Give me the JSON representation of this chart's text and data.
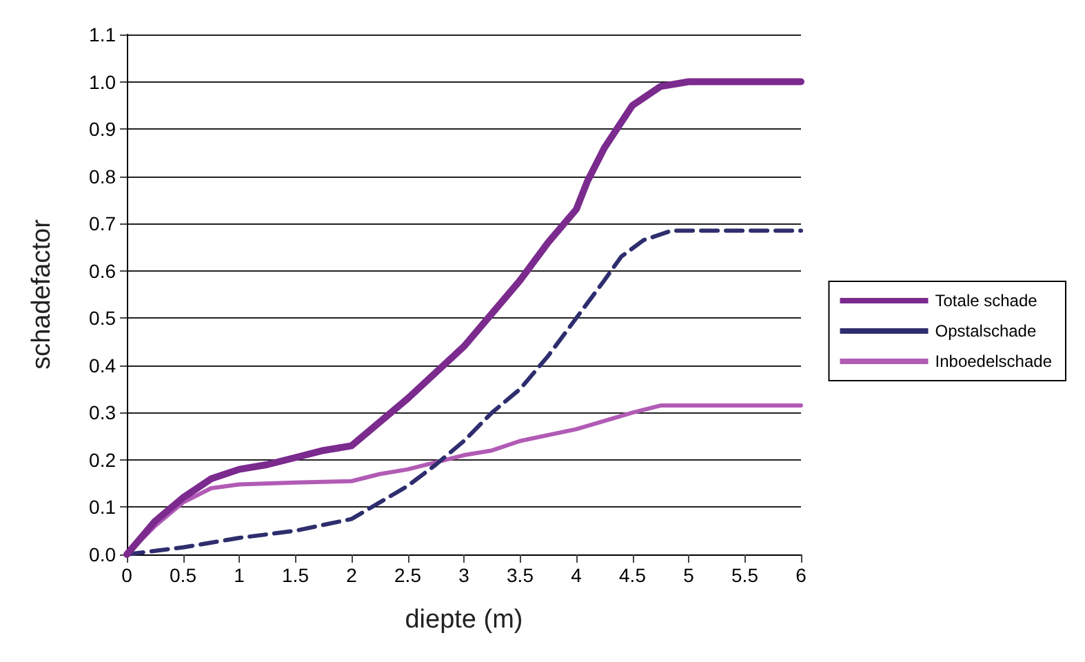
{
  "chart_data": {
    "type": "line",
    "xlabel": "diepte (m)",
    "ylabel": "schadefactor",
    "xlim": [
      0,
      6
    ],
    "xticks": [
      0,
      0.5,
      1,
      1.5,
      2,
      2.5,
      3,
      3.5,
      4,
      4.5,
      5,
      5.5,
      6
    ],
    "ylim": [
      0,
      1.1
    ],
    "yticks": [
      {
        "value": 0,
        "label": "0.0"
      },
      0.1,
      0.2,
      0.3,
      0.4,
      0.5,
      0.6,
      0.7,
      0.8,
      0.9,
      {
        "value": 1,
        "label": "1.0"
      },
      1.1
    ],
    "grid": "y",
    "legend": "right",
    "marker": "none",
    "series": [
      {
        "name": "Totale schade",
        "color": "#7b2a8e",
        "line_style": "solid",
        "x": [
          0,
          0.25,
          0.5,
          0.75,
          1,
          1.25,
          1.5,
          1.75,
          2,
          2.25,
          2.5,
          2.75,
          3,
          3.25,
          3.5,
          3.75,
          4,
          4.1,
          4.25,
          4.5,
          4.75,
          5,
          6
        ],
        "values": [
          0,
          0.07,
          0.12,
          0.16,
          0.18,
          0.19,
          0.205,
          0.22,
          0.23,
          0.28,
          0.33,
          0.385,
          0.44,
          0.51,
          0.58,
          0.66,
          0.73,
          0.79,
          0.86,
          0.95,
          0.99,
          1.0,
          1.0
        ]
      },
      {
        "name": "Opstalschade",
        "color": "#2e2d6e",
        "line_style": "dashed",
        "x": [
          0,
          0.5,
          1,
          1.5,
          2,
          2.25,
          2.5,
          2.75,
          3,
          3.25,
          3.5,
          3.75,
          4,
          4.25,
          4.4,
          4.6,
          4.85,
          6
        ],
        "values": [
          0,
          0.015,
          0.035,
          0.05,
          0.075,
          0.11,
          0.145,
          0.19,
          0.24,
          0.3,
          0.35,
          0.42,
          0.5,
          0.58,
          0.63,
          0.665,
          0.685,
          0.685
        ]
      },
      {
        "name": "Inboedelschade",
        "color": "#b15bb5",
        "line_style": "solid",
        "x": [
          0,
          0.25,
          0.5,
          0.75,
          1,
          1.5,
          2,
          2.25,
          2.5,
          2.75,
          3,
          3.25,
          3.5,
          4,
          4.5,
          4.75,
          6
        ],
        "values": [
          0,
          0.06,
          0.11,
          0.14,
          0.148,
          0.152,
          0.155,
          0.17,
          0.18,
          0.195,
          0.21,
          0.22,
          0.24,
          0.265,
          0.3,
          0.315,
          0.315
        ]
      }
    ]
  }
}
